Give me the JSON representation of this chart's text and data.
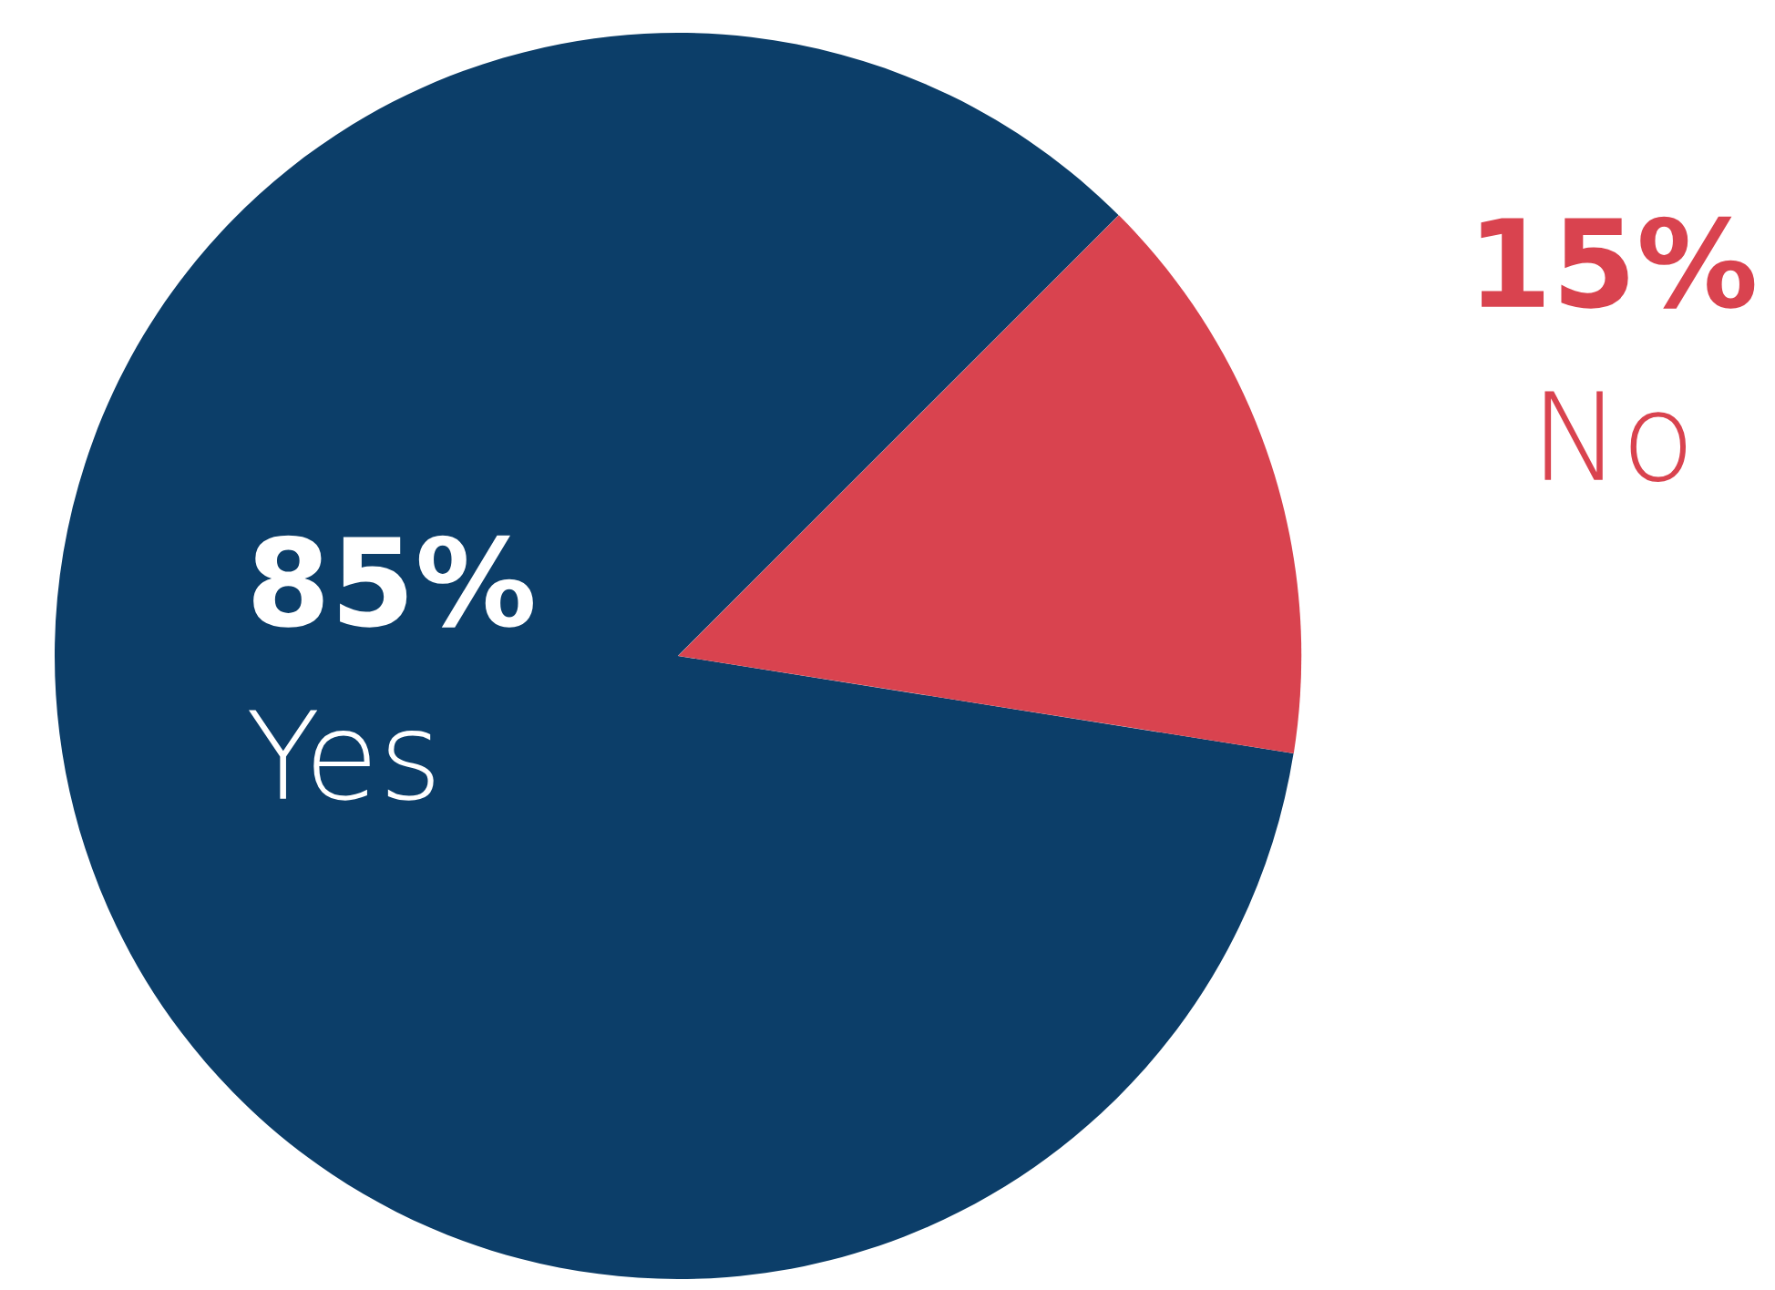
{
  "chart_data": {
    "type": "pie",
    "categories": [
      "Yes",
      "No"
    ],
    "values": [
      85,
      15
    ],
    "colors": [
      "#0c3e69",
      "#d9434f"
    ],
    "value_labels": [
      "85%",
      "15%"
    ],
    "legend": false
  }
}
